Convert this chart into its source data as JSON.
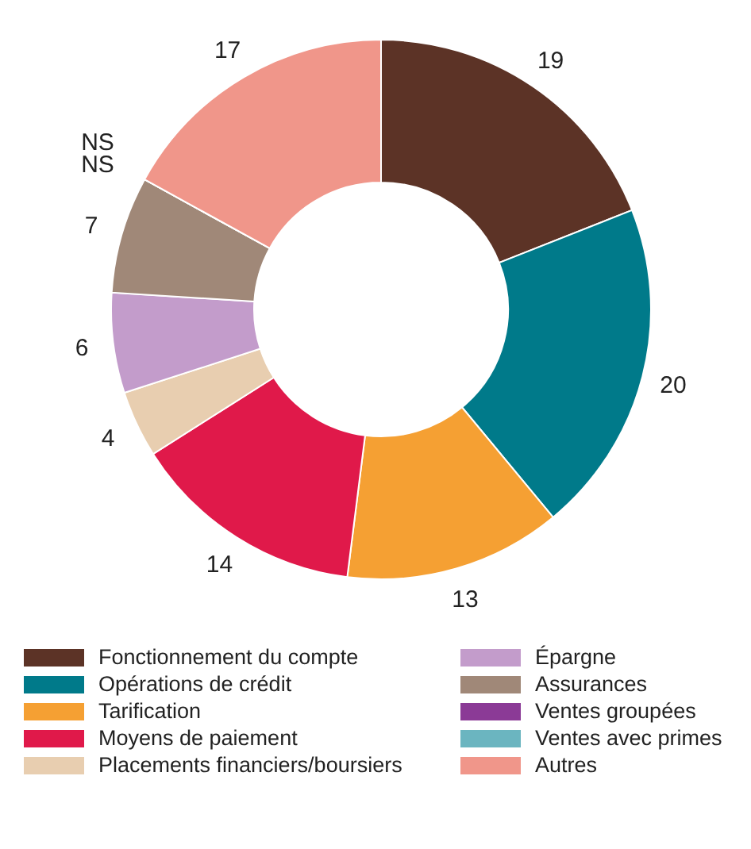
{
  "chart_data": {
    "type": "donut",
    "categories": [
      "Fonctionnement du compte",
      "Opérations de crédit",
      "Tarification",
      "Moyens de paiement",
      "Placements financiers/boursiers",
      "Épargne",
      "Assurances",
      "Ventes groupées",
      "Ventes avec primes",
      "Autres"
    ],
    "values": [
      19,
      20,
      13,
      14,
      4,
      6,
      7,
      0,
      0,
      17
    ],
    "value_labels": [
      "19",
      "20",
      "13",
      "14",
      "4",
      "6",
      "7",
      "NS",
      "NS",
      "17"
    ],
    "colors": [
      "#5c3326",
      "#007a8a",
      "#f5a033",
      "#e0194a",
      "#e8ceb0",
      "#c39ccb",
      "#a08878",
      "#8b3a96",
      "#6bb5c0",
      "#f0968a"
    ],
    "legend": "bottom"
  }
}
